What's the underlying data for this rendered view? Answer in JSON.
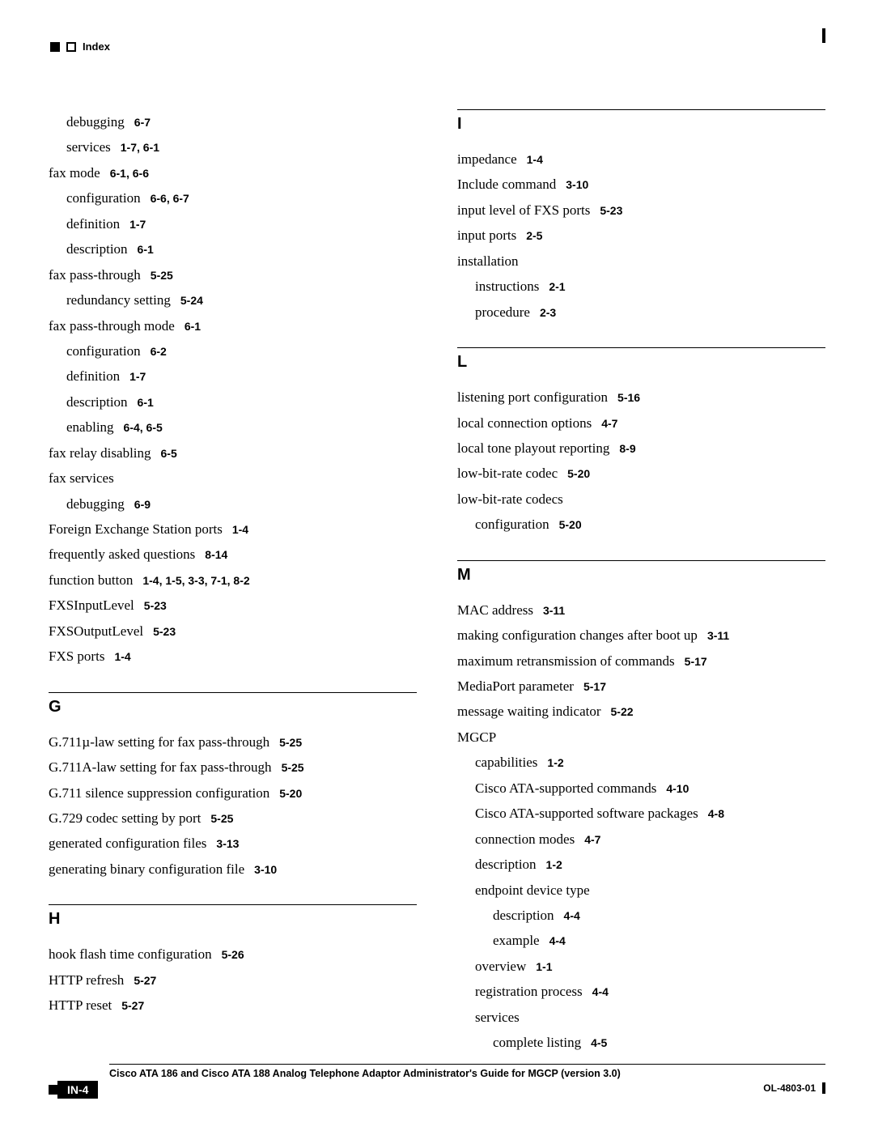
{
  "header": {
    "label": "Index"
  },
  "page_badge": "IN-4",
  "footer": {
    "title": "Cisco ATA 186 and Cisco ATA 188 Analog Telephone Adaptor Administrator's Guide for MGCP (version 3.0)",
    "right": "OL-4803-01"
  },
  "left_entries": [
    {
      "term": "debugging",
      "ref": "6-7",
      "lvl": 1
    },
    {
      "term": "services",
      "ref": "1-7, 6-1",
      "lvl": 1
    },
    {
      "term": "fax mode",
      "ref": "6-1, 6-6",
      "lvl": 0
    },
    {
      "term": "configuration",
      "ref": "6-6, 6-7",
      "lvl": 1
    },
    {
      "term": "definition",
      "ref": "1-7",
      "lvl": 1
    },
    {
      "term": "description",
      "ref": "6-1",
      "lvl": 1
    },
    {
      "term": "fax pass-through",
      "ref": "5-25",
      "lvl": 0
    },
    {
      "term": "redundancy setting",
      "ref": "5-24",
      "lvl": 1
    },
    {
      "term": "fax pass-through mode",
      "ref": "6-1",
      "lvl": 0
    },
    {
      "term": "configuration",
      "ref": "6-2",
      "lvl": 1
    },
    {
      "term": "definition",
      "ref": "1-7",
      "lvl": 1
    },
    {
      "term": "description",
      "ref": "6-1",
      "lvl": 1
    },
    {
      "term": "enabling",
      "ref": "6-4, 6-5",
      "lvl": 1
    },
    {
      "term": "fax relay disabling",
      "ref": "6-5",
      "lvl": 0
    },
    {
      "term": "fax services",
      "ref": "",
      "lvl": 0
    },
    {
      "term": "debugging",
      "ref": "6-9",
      "lvl": 1
    },
    {
      "term": "Foreign Exchange Station ports",
      "ref": "1-4",
      "lvl": 0
    },
    {
      "term": "frequently asked questions",
      "ref": "8-14",
      "lvl": 0
    },
    {
      "term": "function button",
      "ref": "1-4, 1-5, 3-3, 7-1, 8-2",
      "lvl": 0
    },
    {
      "term": "FXSInputLevel",
      "ref": "5-23",
      "lvl": 0
    },
    {
      "term": "FXSOutputLevel",
      "ref": "5-23",
      "lvl": 0
    },
    {
      "term": "FXS ports",
      "ref": "1-4",
      "lvl": 0
    }
  ],
  "left_sections": [
    {
      "letter": "G",
      "entries": [
        {
          "term": "G.711µ-law setting for fax pass-through",
          "ref": "5-25",
          "lvl": 0
        },
        {
          "term": "G.711A-law setting for fax pass-through",
          "ref": "5-25",
          "lvl": 0
        },
        {
          "term": "G.711 silence suppression configuration",
          "ref": "5-20",
          "lvl": 0
        },
        {
          "term": "G.729 codec setting by port",
          "ref": "5-25",
          "lvl": 0
        },
        {
          "term": "generated configuration files",
          "ref": "3-13",
          "lvl": 0
        },
        {
          "term": "generating binary configuration file",
          "ref": "3-10",
          "lvl": 0
        }
      ]
    },
    {
      "letter": "H",
      "entries": [
        {
          "term": "hook flash time configuration",
          "ref": "5-26",
          "lvl": 0
        },
        {
          "term": "HTTP refresh",
          "ref": "5-27",
          "lvl": 0
        },
        {
          "term": "HTTP reset",
          "ref": "5-27",
          "lvl": 0
        }
      ]
    }
  ],
  "right_sections": [
    {
      "letter": "I",
      "entries": [
        {
          "term": "impedance",
          "ref": "1-4",
          "lvl": 0
        },
        {
          "term": "Include command",
          "ref": "3-10",
          "lvl": 0
        },
        {
          "term": "input level of FXS ports",
          "ref": "5-23",
          "lvl": 0
        },
        {
          "term": "input ports",
          "ref": "2-5",
          "lvl": 0
        },
        {
          "term": "installation",
          "ref": "",
          "lvl": 0
        },
        {
          "term": "instructions",
          "ref": "2-1",
          "lvl": 1
        },
        {
          "term": "procedure",
          "ref": "2-3",
          "lvl": 1
        }
      ]
    },
    {
      "letter": "L",
      "entries": [
        {
          "term": "listening port configuration",
          "ref": "5-16",
          "lvl": 0
        },
        {
          "term": "local connection options",
          "ref": "4-7",
          "lvl": 0
        },
        {
          "term": "local tone playout reporting",
          "ref": "8-9",
          "lvl": 0
        },
        {
          "term": "low-bit-rate codec",
          "ref": "5-20",
          "lvl": 0
        },
        {
          "term": "low-bit-rate codecs",
          "ref": "",
          "lvl": 0
        },
        {
          "term": "configuration",
          "ref": "5-20",
          "lvl": 1
        }
      ]
    },
    {
      "letter": "M",
      "entries": [
        {
          "term": "MAC address",
          "ref": "3-11",
          "lvl": 0
        },
        {
          "term": "making configuration changes after boot up",
          "ref": "3-11",
          "lvl": 0
        },
        {
          "term": "maximum retransmission of commands",
          "ref": "5-17",
          "lvl": 0
        },
        {
          "term": "MediaPort parameter",
          "ref": "5-17",
          "lvl": 0
        },
        {
          "term": "message waiting indicator",
          "ref": "5-22",
          "lvl": 0
        },
        {
          "term": "MGCP",
          "ref": "",
          "lvl": 0
        },
        {
          "term": "capabilities",
          "ref": "1-2",
          "lvl": 1
        },
        {
          "term": "Cisco ATA-supported commands",
          "ref": "4-10",
          "lvl": 1
        },
        {
          "term": "Cisco ATA-supported software packages",
          "ref": "4-8",
          "lvl": 1
        },
        {
          "term": "connection modes",
          "ref": "4-7",
          "lvl": 1
        },
        {
          "term": "description",
          "ref": "1-2",
          "lvl": 1
        },
        {
          "term": "endpoint device type",
          "ref": "",
          "lvl": 1
        },
        {
          "term": "description",
          "ref": "4-4",
          "lvl": 2
        },
        {
          "term": "example",
          "ref": "4-4",
          "lvl": 2
        },
        {
          "term": "overview",
          "ref": "1-1",
          "lvl": 1
        },
        {
          "term": "registration process",
          "ref": "4-4",
          "lvl": 1
        },
        {
          "term": "services",
          "ref": "",
          "lvl": 1
        },
        {
          "term": "complete listing",
          "ref": "4-5",
          "lvl": 2
        }
      ]
    }
  ]
}
